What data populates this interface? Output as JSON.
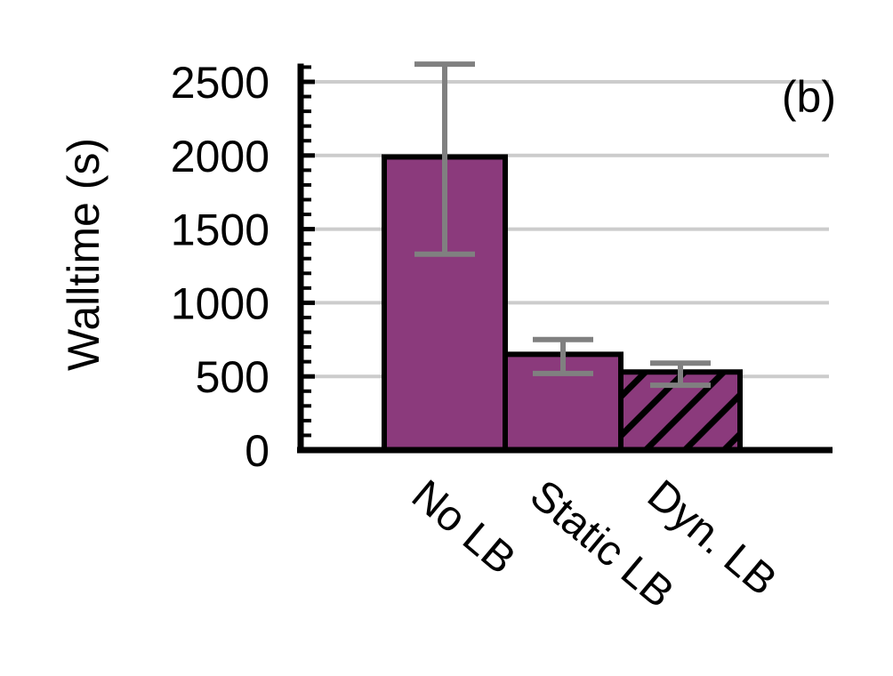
{
  "chart_data": {
    "type": "bar",
    "panel_label": "(b)",
    "title": "",
    "xlabel": "",
    "ylabel": "Walltime (s)",
    "ylim": [
      0,
      2600
    ],
    "yticks": [
      0,
      500,
      1000,
      1500,
      2000,
      2500
    ],
    "ytick_labels": [
      "0",
      "500",
      "1000",
      "1500",
      "2000",
      "2500"
    ],
    "minor_tick_step": 100,
    "grid": "horizontal",
    "categories": [
      "No LB",
      "Static LB",
      "Dyn. LB"
    ],
    "values": [
      1990,
      650,
      530
    ],
    "error_low": [
      1330,
      520,
      440
    ],
    "error_high": [
      2620,
      750,
      590
    ],
    "hatched": [
      false,
      false,
      true
    ],
    "colors": {
      "bar_fill": "#8b3a7c",
      "bar_edge": "#000000",
      "error_bar": "#808080",
      "grid": "#cccccc",
      "axis": "#000000"
    }
  }
}
